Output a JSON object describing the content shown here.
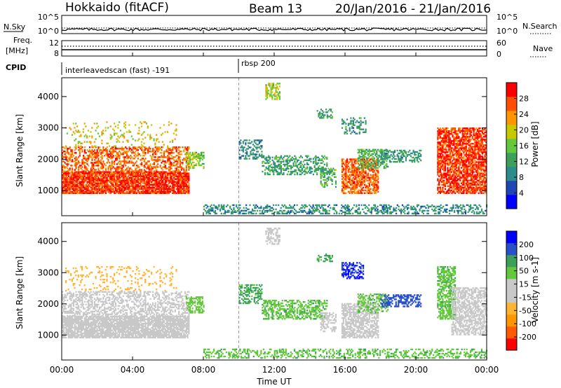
{
  "header": {
    "radar": "Hokkaido (fitACF)",
    "beam": "Beam 13",
    "dates": "20/Jan/2016 - 21/Jan/2016"
  },
  "top_panels": {
    "nsky_label": "N.Sky",
    "nsearch_label": "N.Search",
    "noise_ticks": [
      "10^5",
      "10^0"
    ],
    "freq_label_line1": "Freq.",
    "freq_label_line2": "[MHz]",
    "freq_ticks": [
      "12",
      "8"
    ],
    "nave_label": "Nave",
    "nave_ticks": [
      "60",
      "0"
    ],
    "cpid_label": "CPID"
  },
  "cpid_segments": [
    {
      "label": "interleavedscan (fast) -191",
      "start_hour": 0
    },
    {
      "label": "rbsp 200",
      "start_hour": 10
    }
  ],
  "xaxis": {
    "label": "Time UT",
    "ticks": [
      "00:00",
      "04:00",
      "08:00",
      "12:00",
      "16:00",
      "20:00",
      "00:00"
    ]
  },
  "colors": {
    "power": [
      "#0000ff",
      "#1e46b4",
      "#2e8c8c",
      "#3ca05a",
      "#64c83c",
      "#c8c800",
      "#ff9600",
      "#ff5000",
      "#ff0000"
    ],
    "velocity": [
      "#ff0000",
      "#ff5a00",
      "#ff9600",
      "#ffb432",
      "#c8c8c8",
      "#c8c8c8",
      "#64c83c",
      "#3ca05a",
      "#2850c8",
      "#0000ff"
    ]
  },
  "chart_data": [
    {
      "type": "heatmap",
      "name": "power",
      "ylabel": "Slant Range [km]",
      "xlabel": "",
      "xlim_hours": [
        0,
        24
      ],
      "ylim": [
        200,
        4600
      ],
      "yticks": [
        1000,
        2000,
        3000,
        4000
      ],
      "colorbar_label": "Power [dB]",
      "colorbar_ticks": [
        4,
        8,
        12,
        16,
        20,
        24,
        28
      ],
      "colorbar_range": [
        0,
        32
      ],
      "regions": [
        {
          "t0": 0.0,
          "t1": 7.2,
          "r0": 900,
          "r1": 1600,
          "value": 28,
          "density": 0.85
        },
        {
          "t0": 0.0,
          "t1": 7.2,
          "r0": 1600,
          "r1": 2400,
          "value": 26,
          "density": 0.45
        },
        {
          "t0": 0.2,
          "t1": 6.5,
          "r0": 2400,
          "r1": 3200,
          "value": 20,
          "density": 0.12
        },
        {
          "t0": 7.0,
          "t1": 8.0,
          "r0": 1700,
          "r1": 2200,
          "value": 17,
          "density": 0.55
        },
        {
          "t0": 10.0,
          "t1": 11.3,
          "r0": 2000,
          "r1": 2600,
          "value": 10,
          "density": 0.45
        },
        {
          "t0": 11.3,
          "t1": 15.0,
          "r0": 1500,
          "r1": 2100,
          "value": 12,
          "density": 0.45
        },
        {
          "t0": 14.6,
          "t1": 15.5,
          "r0": 1100,
          "r1": 1700,
          "value": 14,
          "density": 0.45
        },
        {
          "t0": 15.8,
          "t1": 17.9,
          "r0": 900,
          "r1": 2000,
          "value": 26,
          "density": 0.6
        },
        {
          "t0": 16.7,
          "t1": 18.4,
          "r0": 1700,
          "r1": 2300,
          "value": 14,
          "density": 0.5
        },
        {
          "t0": 18.0,
          "t1": 20.3,
          "r0": 1900,
          "r1": 2300,
          "value": 11,
          "density": 0.45
        },
        {
          "t0": 15.8,
          "t1": 17.2,
          "r0": 2800,
          "r1": 3300,
          "value": 11,
          "density": 0.35
        },
        {
          "t0": 14.4,
          "t1": 15.3,
          "r0": 3300,
          "r1": 3600,
          "value": 12,
          "density": 0.35
        },
        {
          "t0": 11.5,
          "t1": 12.3,
          "r0": 3900,
          "r1": 4400,
          "value": 18,
          "density": 0.55
        },
        {
          "t0": 21.2,
          "t1": 24.0,
          "r0": 900,
          "r1": 3000,
          "value": 28,
          "density": 0.7
        },
        {
          "t0": 8.0,
          "t1": 24.0,
          "r0": 250,
          "r1": 550,
          "value": 10,
          "density": 0.35
        }
      ]
    },
    {
      "type": "heatmap",
      "name": "velocity",
      "ylabel": "Slant Range [km]",
      "xlabel": "Time UT",
      "xlim_hours": [
        0,
        24
      ],
      "ylim": [
        200,
        4600
      ],
      "yticks": [
        1000,
        2000,
        3000,
        4000
      ],
      "colorbar_label": "Velocity [m s-1]",
      "colorbar_ticks": [
        -200,
        -100,
        -50,
        -15,
        15,
        50,
        100,
        200
      ],
      "regions": [
        {
          "t0": 0.0,
          "t1": 7.2,
          "r0": 900,
          "r1": 1600,
          "value": 0,
          "density": 0.85
        },
        {
          "t0": 0.0,
          "t1": 7.2,
          "r0": 1600,
          "r1": 2400,
          "value": 0,
          "density": 0.45
        },
        {
          "t0": 0.2,
          "t1": 6.5,
          "r0": 2400,
          "r1": 3200,
          "value": -30,
          "density": 0.12
        },
        {
          "t0": 7.0,
          "t1": 8.0,
          "r0": 1700,
          "r1": 2200,
          "value": 30,
          "density": 0.5
        },
        {
          "t0": 10.0,
          "t1": 11.3,
          "r0": 2000,
          "r1": 2600,
          "value": 60,
          "density": 0.45
        },
        {
          "t0": 11.3,
          "t1": 15.0,
          "r0": 1500,
          "r1": 2100,
          "value": 40,
          "density": 0.45
        },
        {
          "t0": 14.6,
          "t1": 15.5,
          "r0": 1100,
          "r1": 1700,
          "value": 0,
          "density": 0.45
        },
        {
          "t0": 15.8,
          "t1": 17.9,
          "r0": 900,
          "r1": 2000,
          "value": 0,
          "density": 0.65
        },
        {
          "t0": 16.7,
          "t1": 18.4,
          "r0": 1700,
          "r1": 2300,
          "value": 40,
          "density": 0.45
        },
        {
          "t0": 18.0,
          "t1": 20.3,
          "r0": 1900,
          "r1": 2300,
          "value": 180,
          "density": 0.45
        },
        {
          "t0": 15.8,
          "t1": 17.0,
          "r0": 2800,
          "r1": 3300,
          "value": 200,
          "density": 0.5
        },
        {
          "t0": 14.4,
          "t1": 15.3,
          "r0": 3300,
          "r1": 3600,
          "value": 60,
          "density": 0.35
        },
        {
          "t0": 11.5,
          "t1": 12.3,
          "r0": 3900,
          "r1": 4400,
          "value": 0,
          "density": 0.55
        },
        {
          "t0": 21.2,
          "t1": 22.2,
          "r0": 1500,
          "r1": 3200,
          "value": 40,
          "density": 0.6
        },
        {
          "t0": 22.0,
          "t1": 24.0,
          "r0": 1000,
          "r1": 2500,
          "value": 0,
          "density": 0.6
        },
        {
          "t0": 8.0,
          "t1": 24.0,
          "r0": 250,
          "r1": 550,
          "value": 40,
          "density": 0.35
        }
      ]
    }
  ]
}
